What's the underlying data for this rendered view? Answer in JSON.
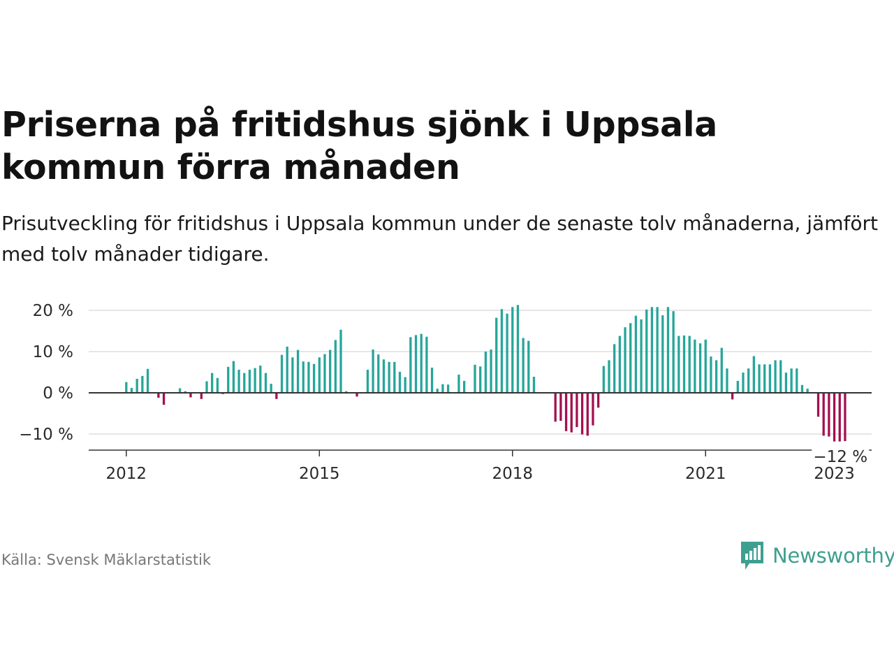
{
  "header": {
    "title": "Priserna på fritidshus sjönk i Uppsala kommun förra månaden",
    "subtitle": "Prisutveckling för fritidshus i Uppsala kommun under de senaste tolv månaderna, jämfört med tolv månader tidigare."
  },
  "footer": {
    "source": "Källa: Svensk Mäklarstatistik",
    "brand": "Newsworthy",
    "brand_icon": "newsworthy-bar-chart-logo-icon"
  },
  "colors": {
    "positive": "#26a69a",
    "negative": "#a3104f",
    "gridline": "#dddddd",
    "zero_line": "#333333",
    "brand": "#3e9f8f"
  },
  "chart_data": {
    "type": "bar",
    "title": "Priserna på fritidshus sjönk i Uppsala kommun förra månaden",
    "subtitle": "Prisutveckling för fritidshus i Uppsala kommun under de senaste tolv månaderna, jämfört med tolv månader tidigare.",
    "x_start": "2012-01",
    "x_tick_labels": [
      "2012",
      "2015",
      "2018",
      "2021",
      "2023"
    ],
    "y_tick_labels": [
      "20 %",
      "10 %",
      "0 %",
      "−10 %"
    ],
    "y_ticks": [
      20,
      10,
      0,
      -10
    ],
    "ylim": [
      -13.5,
      22
    ],
    "grid": true,
    "legend": "none",
    "unit": "%",
    "annotation": {
      "label": "−12 %",
      "value": -12,
      "period": "2023-02"
    },
    "values": [
      2.6,
      1.2,
      3.4,
      4.1,
      5.8,
      0,
      -1.2,
      -2.9,
      0,
      0,
      1.1,
      0.4,
      -1.1,
      0,
      -1.5,
      2.8,
      4.8,
      3.6,
      -0.3,
      6.3,
      7.7,
      5.6,
      4.8,
      5.6,
      6.0,
      6.6,
      4.8,
      2.2,
      -1.5,
      9.2,
      11.2,
      8.6,
      10.4,
      7.6,
      7.5,
      7.0,
      8.6,
      9.4,
      10.4,
      12.8,
      15.3,
      0.4,
      0,
      -0.9,
      0,
      5.6,
      10.5,
      9.3,
      8.1,
      7.5,
      7.5,
      5.1,
      3.8,
      13.5,
      14.0,
      14.3,
      13.6,
      6.1,
      1.0,
      2.1,
      2.0,
      0,
      4.4,
      2.9,
      0,
      6.8,
      6.4,
      10.0,
      10.5,
      18.2,
      20.3,
      19.2,
      20.8,
      21.3,
      13.3,
      12.6,
      3.9,
      0,
      0,
      0,
      -7.0,
      -6.8,
      -9.3,
      -9.6,
      -8.3,
      -10.1,
      -10.4,
      -7.9,
      -3.6,
      6.5,
      7.9,
      11.8,
      13.8,
      15.9,
      16.9,
      18.7,
      17.8,
      20.2,
      20.8,
      20.8,
      18.8,
      20.8,
      19.8,
      13.8,
      13.9,
      13.8,
      12.9,
      12.0,
      12.9,
      8.8,
      7.9,
      10.9,
      5.9,
      -1.6,
      2.9,
      4.9,
      5.9,
      8.9,
      6.9,
      6.9,
      6.9,
      7.9,
      7.9,
      4.9,
      5.9,
      5.9,
      1.9,
      1.0,
      0,
      -5.8,
      -10.4,
      -10.6,
      -11.8,
      -11.8,
      -11.7
    ]
  }
}
